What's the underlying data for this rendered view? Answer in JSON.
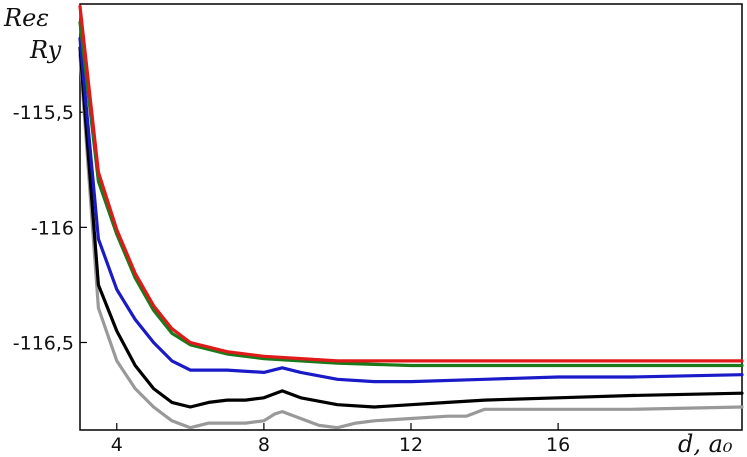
{
  "chart_data": {
    "type": "line",
    "ylabel_line1": "Reε",
    "ylabel_line2": "Ry",
    "xlabel": "d, a₀",
    "xlim": [
      3,
      21
    ],
    "ylim": [
      -116.88,
      -115.03
    ],
    "xticks": [
      4,
      8,
      12,
      16
    ],
    "xtick_labels": [
      "4",
      "8",
      "12",
      "16"
    ],
    "yticks": [
      -115.5,
      -116,
      -116.5
    ],
    "ytick_labels": [
      "-115,5",
      "-116",
      "-116,5"
    ],
    "grid": false,
    "series": [
      {
        "color": "#999999",
        "points": [
          [
            3,
            -115.25
          ],
          [
            3.5,
            -116.35
          ],
          [
            4,
            -116.58
          ],
          [
            4.5,
            -116.7
          ],
          [
            5,
            -116.78
          ],
          [
            5.5,
            -116.84
          ],
          [
            6,
            -116.87
          ],
          [
            6.5,
            -116.85
          ],
          [
            7,
            -116.85
          ],
          [
            7.5,
            -116.85
          ],
          [
            8,
            -116.84
          ],
          [
            8.3,
            -116.81
          ],
          [
            8.5,
            -116.8
          ],
          [
            9,
            -116.83
          ],
          [
            9.5,
            -116.86
          ],
          [
            10,
            -116.87
          ],
          [
            10.5,
            -116.85
          ],
          [
            11,
            -116.84
          ],
          [
            12,
            -116.83
          ],
          [
            13,
            -116.82
          ],
          [
            13.5,
            -116.82
          ],
          [
            14,
            -116.79
          ],
          [
            16,
            -116.79
          ],
          [
            18,
            -116.79
          ],
          [
            21,
            -116.78
          ]
        ]
      },
      {
        "color": "#000000",
        "points": [
          [
            3,
            -115.22
          ],
          [
            3.5,
            -116.25
          ],
          [
            4,
            -116.45
          ],
          [
            4.5,
            -116.6
          ],
          [
            5,
            -116.7
          ],
          [
            5.5,
            -116.76
          ],
          [
            6,
            -116.78
          ],
          [
            6.5,
            -116.76
          ],
          [
            7,
            -116.75
          ],
          [
            7.5,
            -116.75
          ],
          [
            8,
            -116.74
          ],
          [
            8.5,
            -116.71
          ],
          [
            9,
            -116.74
          ],
          [
            10,
            -116.77
          ],
          [
            11,
            -116.78
          ],
          [
            12,
            -116.77
          ],
          [
            13,
            -116.76
          ],
          [
            14,
            -116.75
          ],
          [
            16,
            -116.74
          ],
          [
            18,
            -116.73
          ],
          [
            21,
            -116.72
          ]
        ]
      },
      {
        "color": "#1a1ac8",
        "points": [
          [
            3,
            -115.18
          ],
          [
            3.5,
            -116.05
          ],
          [
            4,
            -116.27
          ],
          [
            4.5,
            -116.4
          ],
          [
            5,
            -116.5
          ],
          [
            5.5,
            -116.58
          ],
          [
            6,
            -116.62
          ],
          [
            7,
            -116.62
          ],
          [
            8,
            -116.63
          ],
          [
            8.5,
            -116.61
          ],
          [
            9,
            -116.63
          ],
          [
            10,
            -116.66
          ],
          [
            11,
            -116.67
          ],
          [
            12,
            -116.67
          ],
          [
            14,
            -116.66
          ],
          [
            16,
            -116.65
          ],
          [
            18,
            -116.65
          ],
          [
            21,
            -116.64
          ]
        ]
      },
      {
        "color": "#1a7a1a",
        "points": [
          [
            3,
            -115.11
          ],
          [
            3.5,
            -115.8
          ],
          [
            4,
            -116.03
          ],
          [
            4.5,
            -116.22
          ],
          [
            5,
            -116.36
          ],
          [
            5.5,
            -116.46
          ],
          [
            6,
            -116.51
          ],
          [
            7,
            -116.55
          ],
          [
            8,
            -116.57
          ],
          [
            9,
            -116.58
          ],
          [
            10,
            -116.59
          ],
          [
            12,
            -116.6
          ],
          [
            16,
            -116.6
          ],
          [
            21,
            -116.6
          ]
        ]
      },
      {
        "color": "#e01a1a",
        "points": [
          [
            3,
            -115.04
          ],
          [
            3.5,
            -115.76
          ],
          [
            4,
            -116.01
          ],
          [
            4.5,
            -116.2
          ],
          [
            5,
            -116.34
          ],
          [
            5.5,
            -116.44
          ],
          [
            6,
            -116.5
          ],
          [
            7,
            -116.54
          ],
          [
            8,
            -116.56
          ],
          [
            9,
            -116.57
          ],
          [
            10,
            -116.58
          ],
          [
            12,
            -116.58
          ],
          [
            16,
            -116.58
          ],
          [
            21,
            -116.58
          ]
        ]
      }
    ]
  }
}
